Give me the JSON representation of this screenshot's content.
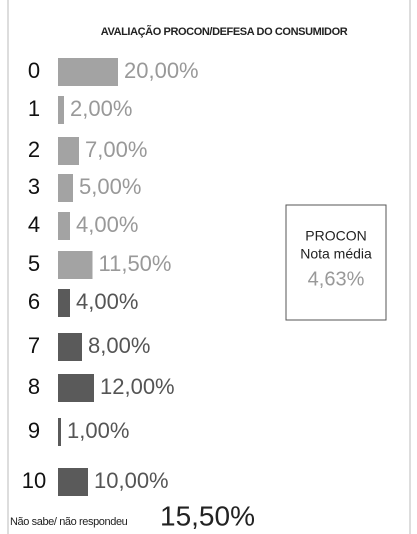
{
  "chart_data": {
    "type": "bar",
    "orientation": "horizontal",
    "title": "AVALIAÇÃO PROCON/DEFESA DO CONSUMIDOR",
    "categories": [
      "0",
      "1",
      "2",
      "3",
      "4",
      "5",
      "6",
      "7",
      "8",
      "9",
      "10"
    ],
    "values": [
      20,
      2,
      7,
      5,
      4,
      11.5,
      4,
      8,
      12,
      1,
      10
    ],
    "value_labels": [
      "20,00%",
      "2,00%",
      "7,00%",
      "5,00%",
      "4,00%",
      "11,50%",
      "4,00%",
      "8,00%",
      "12,00%",
      "1,00%",
      "10,00%"
    ],
    "colors": [
      "#a3a3a3",
      "#a3a3a3",
      "#a3a3a3",
      "#a3a3a3",
      "#a3a3a3",
      "#a3a3a3",
      "#5a5a5a",
      "#5a5a5a",
      "#5a5a5a",
      "#5a5a5a",
      "#5a5a5a"
    ],
    "no_answer": {
      "label": "Não sabe/ não respondeu",
      "value": 15.5,
      "value_label": "15,50%"
    },
    "annotation": {
      "lines": [
        "PROCON",
        "Nota média"
      ],
      "value": 4.63,
      "value_label": "4,63%"
    }
  }
}
